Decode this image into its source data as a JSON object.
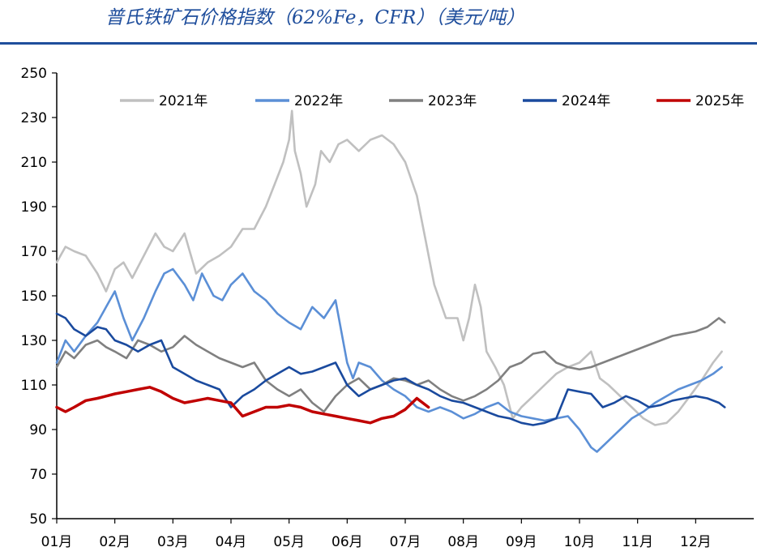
{
  "header": {
    "title": "普氏铁矿石价格指数（62%Fe，CFR）（美元/吨）"
  },
  "chart_data": {
    "type": "line",
    "title": "普氏铁矿石价格指数（62%Fe，CFR）（美元/吨）",
    "xlabel": "",
    "ylabel": "",
    "ylim": [
      50,
      250
    ],
    "yticks": [
      50,
      70,
      90,
      110,
      130,
      150,
      170,
      190,
      210,
      230,
      250
    ],
    "xlim": [
      1,
      13
    ],
    "categories": [
      "01月",
      "02月",
      "03月",
      "04月",
      "05月",
      "06月",
      "07月",
      "08月",
      "09月",
      "10月",
      "11月",
      "12月"
    ],
    "grid": false,
    "legend_position": "top",
    "series": [
      {
        "name": "2021年",
        "color": "#c0c0c0",
        "x": [
          1.0,
          1.15,
          1.3,
          1.5,
          1.7,
          1.85,
          2.0,
          2.15,
          2.3,
          2.5,
          2.7,
          2.85,
          3.0,
          3.2,
          3.4,
          3.6,
          3.8,
          4.0,
          4.2,
          4.4,
          4.6,
          4.75,
          4.9,
          5.0,
          5.05,
          5.1,
          5.2,
          5.3,
          5.45,
          5.55,
          5.7,
          5.85,
          6.0,
          6.2,
          6.4,
          6.6,
          6.8,
          7.0,
          7.2,
          7.35,
          7.5,
          7.7,
          7.9,
          8.0,
          8.1,
          8.2,
          8.3,
          8.4,
          8.55,
          8.7,
          8.85,
          9.0,
          9.2,
          9.4,
          9.6,
          9.8,
          10.0,
          10.2,
          10.35,
          10.5,
          10.7,
          10.9,
          11.1,
          11.3,
          11.5,
          11.7,
          11.9,
          12.1,
          12.3,
          12.45
        ],
        "y": [
          165,
          172,
          170,
          168,
          160,
          152,
          162,
          165,
          158,
          168,
          178,
          172,
          170,
          178,
          160,
          165,
          168,
          172,
          180,
          180,
          190,
          200,
          210,
          220,
          233,
          215,
          205,
          190,
          200,
          215,
          210,
          218,
          220,
          215,
          220,
          222,
          218,
          210,
          195,
          175,
          155,
          140,
          140,
          130,
          140,
          155,
          145,
          125,
          118,
          110,
          95,
          100,
          105,
          110,
          115,
          118,
          120,
          125,
          113,
          110,
          105,
          100,
          95,
          92,
          93,
          98,
          105,
          112,
          120,
          125
        ]
      },
      {
        "name": "2022年",
        "color": "#5b8fd6",
        "x": [
          1.0,
          1.15,
          1.3,
          1.5,
          1.7,
          1.85,
          2.0,
          2.15,
          2.3,
          2.5,
          2.7,
          2.85,
          3.0,
          3.2,
          3.35,
          3.5,
          3.7,
          3.85,
          4.0,
          4.2,
          4.4,
          4.6,
          4.8,
          5.0,
          5.2,
          5.4,
          5.6,
          5.8,
          6.0,
          6.1,
          6.2,
          6.4,
          6.6,
          6.8,
          7.0,
          7.2,
          7.4,
          7.6,
          7.8,
          8.0,
          8.2,
          8.4,
          8.6,
          8.8,
          9.0,
          9.2,
          9.4,
          9.6,
          9.8,
          10.0,
          10.2,
          10.3,
          10.5,
          10.7,
          10.9,
          11.1,
          11.3,
          11.5,
          11.7,
          11.9,
          12.1,
          12.3,
          12.45
        ],
        "y": [
          120,
          130,
          125,
          132,
          138,
          145,
          152,
          140,
          130,
          140,
          152,
          160,
          162,
          155,
          148,
          160,
          150,
          148,
          155,
          160,
          152,
          148,
          142,
          138,
          135,
          145,
          140,
          148,
          120,
          113,
          120,
          118,
          112,
          108,
          105,
          100,
          98,
          100,
          98,
          95,
          97,
          100,
          102,
          98,
          96,
          95,
          94,
          95,
          96,
          90,
          82,
          80,
          85,
          90,
          95,
          98,
          102,
          105,
          108,
          110,
          112,
          115,
          118
        ]
      },
      {
        "name": "2023年",
        "color": "#808080",
        "x": [
          1.0,
          1.15,
          1.3,
          1.5,
          1.7,
          1.85,
          2.0,
          2.2,
          2.4,
          2.6,
          2.8,
          3.0,
          3.2,
          3.4,
          3.6,
          3.8,
          4.0,
          4.2,
          4.4,
          4.6,
          4.8,
          5.0,
          5.2,
          5.4,
          5.6,
          5.8,
          6.0,
          6.2,
          6.4,
          6.6,
          6.8,
          7.0,
          7.2,
          7.4,
          7.6,
          7.8,
          8.0,
          8.2,
          8.4,
          8.6,
          8.8,
          9.0,
          9.2,
          9.4,
          9.6,
          9.8,
          10.0,
          10.2,
          10.4,
          10.6,
          10.8,
          11.0,
          11.2,
          11.4,
          11.6,
          11.8,
          12.0,
          12.2,
          12.4,
          12.5
        ],
        "y": [
          118,
          125,
          122,
          128,
          130,
          127,
          125,
          122,
          130,
          128,
          125,
          127,
          132,
          128,
          125,
          122,
          120,
          118,
          120,
          112,
          108,
          105,
          108,
          102,
          98,
          105,
          110,
          113,
          108,
          110,
          113,
          112,
          110,
          112,
          108,
          105,
          103,
          105,
          108,
          112,
          118,
          120,
          124,
          125,
          120,
          118,
          117,
          118,
          120,
          122,
          124,
          126,
          128,
          130,
          132,
          133,
          134,
          136,
          140,
          138
        ]
      },
      {
        "name": "2024年",
        "color": "#1a4a9e",
        "x": [
          1.0,
          1.15,
          1.3,
          1.5,
          1.7,
          1.85,
          2.0,
          2.2,
          2.4,
          2.6,
          2.8,
          3.0,
          3.2,
          3.4,
          3.6,
          3.8,
          4.0,
          4.2,
          4.4,
          4.6,
          4.8,
          5.0,
          5.2,
          5.4,
          5.6,
          5.8,
          6.0,
          6.2,
          6.4,
          6.6,
          6.8,
          7.0,
          7.2,
          7.4,
          7.6,
          7.8,
          8.0,
          8.2,
          8.4,
          8.6,
          8.8,
          9.0,
          9.2,
          9.4,
          9.6,
          9.8,
          10.0,
          10.2,
          10.4,
          10.6,
          10.8,
          11.0,
          11.2,
          11.4,
          11.6,
          11.8,
          12.0,
          12.2,
          12.4,
          12.5
        ],
        "y": [
          142,
          140,
          135,
          132,
          136,
          135,
          130,
          128,
          125,
          128,
          130,
          118,
          115,
          112,
          110,
          108,
          100,
          105,
          108,
          112,
          115,
          118,
          115,
          116,
          118,
          120,
          110,
          105,
          108,
          110,
          112,
          113,
          110,
          108,
          105,
          103,
          102,
          100,
          98,
          96,
          95,
          93,
          92,
          93,
          95,
          108,
          107,
          106,
          100,
          102,
          105,
          103,
          100,
          101,
          103,
          104,
          105,
          104,
          102,
          100
        ]
      },
      {
        "name": "2025年",
        "color": "#c00000",
        "x": [
          1.0,
          1.15,
          1.3,
          1.5,
          1.7,
          1.85,
          2.0,
          2.2,
          2.4,
          2.6,
          2.8,
          3.0,
          3.2,
          3.4,
          3.6,
          3.8,
          4.0,
          4.2,
          4.4,
          4.6,
          4.8,
          5.0,
          5.2,
          5.4,
          5.6,
          5.8,
          6.0,
          6.2,
          6.4,
          6.6,
          6.8,
          7.0,
          7.2,
          7.4
        ],
        "y": [
          100,
          98,
          100,
          103,
          104,
          105,
          106,
          107,
          108,
          109,
          107,
          104,
          102,
          103,
          104,
          103,
          102,
          96,
          98,
          100,
          100,
          101,
          100,
          98,
          97,
          96,
          95,
          94,
          93,
          95,
          96,
          99,
          104,
          100
        ]
      }
    ]
  }
}
